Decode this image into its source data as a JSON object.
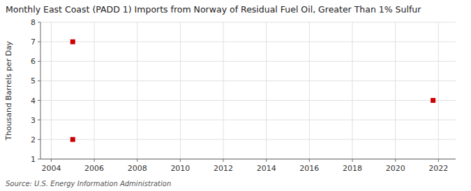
{
  "chart_data": {
    "type": "scatter",
    "title": "Monthly East Coast (PADD 1) Imports from Norway of Residual Fuel Oil, Greater Than 1% Sulfur",
    "ylabel": "Thousand Barrels per Day",
    "source": "Source: U.S. Energy Information Administration",
    "x": [
      2005.0,
      2005.0,
      2021.75
    ],
    "values": [
      2,
      7,
      4
    ],
    "color": "#cc0000",
    "marker": "square",
    "xlim": [
      2003.5,
      2022.8
    ],
    "ylim": [
      1,
      8
    ],
    "xticks": [
      2004,
      2006,
      2008,
      2010,
      2012,
      2014,
      2016,
      2018,
      2020,
      2022
    ],
    "yticks": [
      1,
      2,
      3,
      4,
      5,
      6,
      7,
      8
    ],
    "grid": true
  }
}
